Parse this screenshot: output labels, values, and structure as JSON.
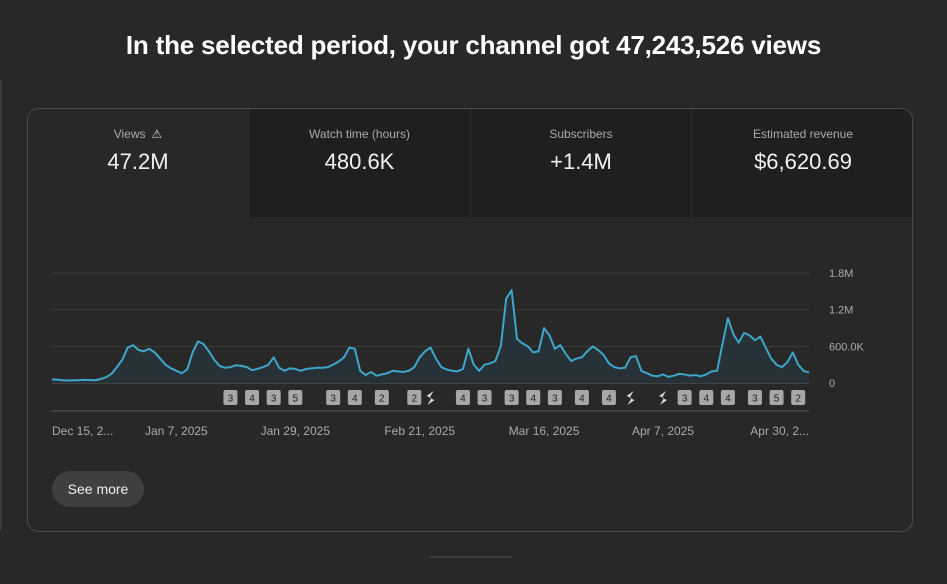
{
  "headline": "In the selected period, your channel got 47,243,526 views",
  "metrics": [
    {
      "label": "Views",
      "value": "47.2M",
      "icon": "warning-icon"
    },
    {
      "label": "Watch time (hours)",
      "value": "480.6K"
    },
    {
      "label": "Subscribers",
      "value": "+1.4M"
    },
    {
      "label": "Estimated revenue",
      "value": "$6,620.69"
    }
  ],
  "see_more_label": "See more",
  "colors": {
    "line": "#3ea6c8",
    "area": "#263238",
    "background": "#282828"
  },
  "chart_data": {
    "type": "area",
    "ylim": [
      0,
      1800000
    ],
    "y_ticks": [
      {
        "value": 0,
        "label": "0"
      },
      {
        "value": 600000,
        "label": "600.0K"
      },
      {
        "value": 1200000,
        "label": "1.2M"
      },
      {
        "value": 1800000,
        "label": "1.8M"
      }
    ],
    "x_ticks": [
      "Dec 15, 2...",
      "Jan 7, 2025",
      "Jan 29, 2025",
      "Feb 21, 2025",
      "Mar 16, 2025",
      "Apr 7, 2025",
      "Apr 30, 2..."
    ],
    "x_tick_index": [
      0,
      23,
      45,
      68,
      91,
      113,
      136
    ],
    "values": [
      60000,
      55000,
      45000,
      40000,
      45000,
      48000,
      52000,
      50000,
      45000,
      65000,
      95000,
      150000,
      260000,
      380000,
      580000,
      620000,
      540000,
      520000,
      560000,
      500000,
      400000,
      300000,
      240000,
      200000,
      160000,
      220000,
      500000,
      680000,
      640000,
      520000,
      380000,
      280000,
      250000,
      260000,
      290000,
      280000,
      260000,
      210000,
      230000,
      260000,
      300000,
      420000,
      250000,
      200000,
      240000,
      230000,
      200000,
      230000,
      240000,
      250000,
      250000,
      260000,
      300000,
      350000,
      420000,
      580000,
      560000,
      200000,
      130000,
      180000,
      120000,
      140000,
      160000,
      200000,
      190000,
      180000,
      200000,
      260000,
      420000,
      520000,
      580000,
      400000,
      260000,
      220000,
      200000,
      190000,
      230000,
      560000,
      300000,
      200000,
      300000,
      320000,
      360000,
      600000,
      1380000,
      1520000,
      720000,
      650000,
      600000,
      500000,
      520000,
      900000,
      780000,
      560000,
      620000,
      480000,
      360000,
      400000,
      420000,
      520000,
      600000,
      540000,
      460000,
      320000,
      260000,
      240000,
      250000,
      420000,
      440000,
      200000,
      160000,
      120000,
      110000,
      140000,
      100000,
      120000,
      150000,
      140000,
      120000,
      130000,
      110000,
      140000,
      190000,
      200000,
      640000,
      1060000,
      800000,
      660000,
      820000,
      780000,
      700000,
      760000,
      580000,
      400000,
      300000,
      260000,
      340000,
      500000,
      300000,
      200000,
      170000
    ],
    "markers": [
      {
        "index": 33,
        "label": "3"
      },
      {
        "index": 37,
        "label": "4"
      },
      {
        "index": 41,
        "label": "3"
      },
      {
        "index": 45,
        "label": "5"
      },
      {
        "index": 52,
        "label": "3"
      },
      {
        "index": 56,
        "label": "4"
      },
      {
        "index": 61,
        "label": "2"
      },
      {
        "index": 67,
        "label": "2"
      },
      {
        "index": 70,
        "label": "shorts"
      },
      {
        "index": 76,
        "label": "4"
      },
      {
        "index": 80,
        "label": "3"
      },
      {
        "index": 85,
        "label": "3"
      },
      {
        "index": 89,
        "label": "4"
      },
      {
        "index": 93,
        "label": "3"
      },
      {
        "index": 98,
        "label": "4"
      },
      {
        "index": 103,
        "label": "4"
      },
      {
        "index": 107,
        "label": "shorts"
      },
      {
        "index": 113,
        "label": "shorts"
      },
      {
        "index": 117,
        "label": "3"
      },
      {
        "index": 121,
        "label": "4"
      },
      {
        "index": 125,
        "label": "4"
      },
      {
        "index": 130,
        "label": "3"
      },
      {
        "index": 134,
        "label": "5"
      },
      {
        "index": 138,
        "label": "2"
      }
    ]
  }
}
